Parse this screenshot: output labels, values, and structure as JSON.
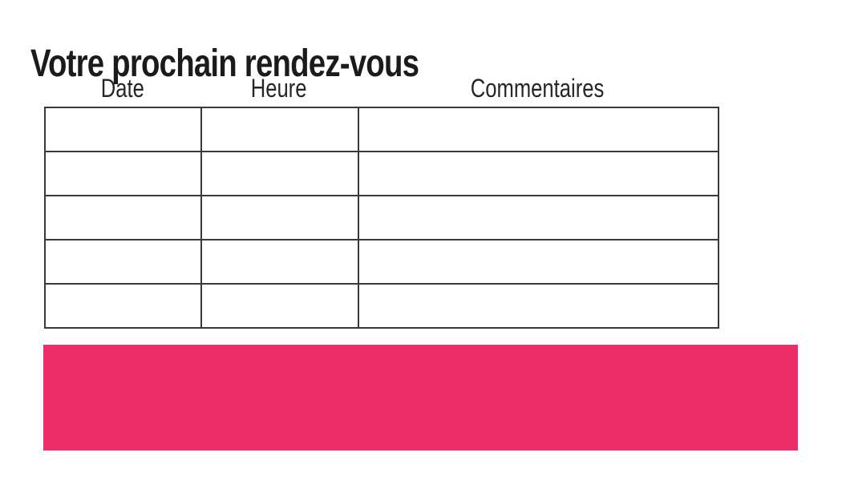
{
  "page": {
    "title": "Votre prochain rendez-vous"
  },
  "table": {
    "columns": [
      {
        "id": "date",
        "label": "Date"
      },
      {
        "id": "heure",
        "label": "Heure"
      },
      {
        "id": "commentaires",
        "label": "Commentaires"
      }
    ],
    "rows": [
      [
        "",
        "",
        ""
      ],
      [
        "",
        "",
        ""
      ],
      [
        "",
        "",
        ""
      ],
      [
        "",
        "",
        ""
      ],
      [
        "",
        "",
        ""
      ]
    ]
  },
  "banner": {
    "text": "",
    "color": "#ED2D68"
  },
  "colors": {
    "accent_pink": "#ED2D68",
    "table_border": "#3a3a3a",
    "title_text": "#1b1b1b",
    "header_text": "#262626",
    "background": "#ffffff"
  }
}
